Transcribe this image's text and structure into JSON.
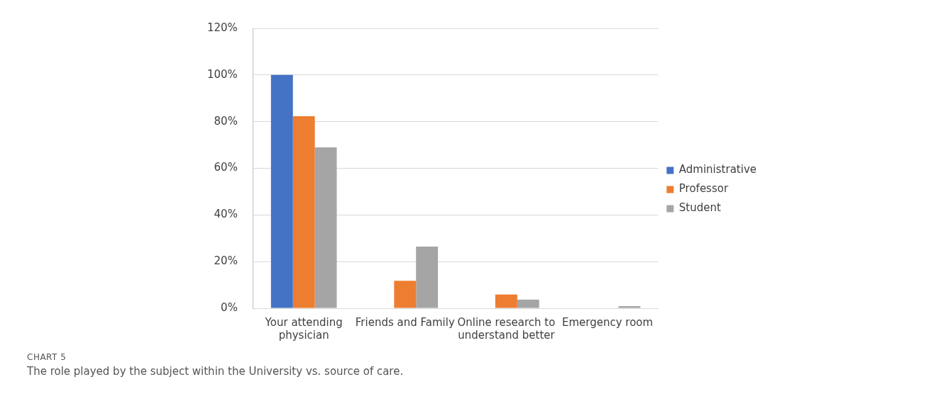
{
  "chart_data": {
    "type": "bar",
    "categories": [
      "Your attending physician",
      "Friends and Family",
      "Online research to understand better",
      "Emergency room"
    ],
    "series": [
      {
        "name": "Administrative",
        "color": "#4472c4",
        "values": [
          100,
          0,
          0,
          0
        ]
      },
      {
        "name": "Professor",
        "color": "#ed7d31",
        "values": [
          82.3,
          11.8,
          5.9,
          0
        ]
      },
      {
        "name": "Student",
        "color": "#a5a5a5",
        "values": [
          69,
          26.4,
          3.7,
          0.9
        ]
      }
    ],
    "ylim": [
      0,
      120
    ],
    "yticks": [
      {
        "value": 0,
        "label": "0%"
      },
      {
        "value": 20,
        "label": "20%"
      },
      {
        "value": 40,
        "label": "40%"
      },
      {
        "value": 60,
        "label": "60%"
      },
      {
        "value": 80,
        "label": "80%"
      },
      {
        "value": 100,
        "label": "100%"
      },
      {
        "value": 120,
        "label": "120%"
      }
    ],
    "grid": "y",
    "legend": "right",
    "annotations": [
      "CHART 5",
      "The role played by the subject within the University vs. source of care."
    ]
  }
}
